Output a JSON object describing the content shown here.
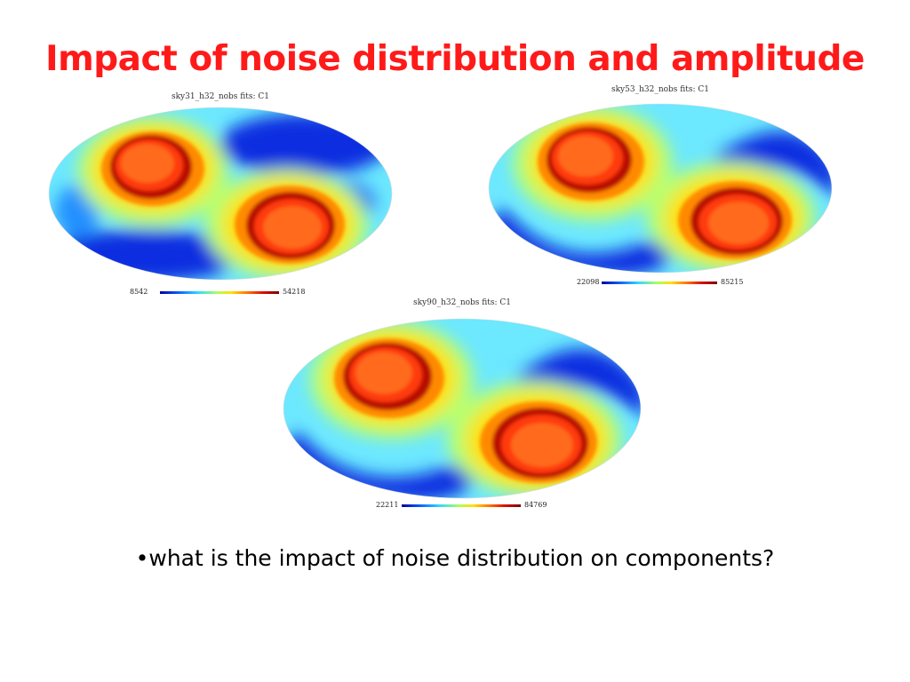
{
  "slide": {
    "title": "Impact of noise distribution and amplitude",
    "bullet": "•what is the impact of noise distribution on components?"
  },
  "maps": [
    {
      "caption": "sky31_h32_nobs fits: C1",
      "scale_min": "8542",
      "scale_max": "54218"
    },
    {
      "caption": "sky53_h32_nobs fits: C1",
      "scale_min": "22098",
      "scale_max": "85215"
    },
    {
      "caption": "sky90_h32_nobs fits: C1",
      "scale_min": "22211",
      "scale_max": "84769"
    }
  ],
  "colors": {
    "title": "#ff1a1a",
    "colormap": [
      "#00008f",
      "#0050ff",
      "#30d8ff",
      "#a8ff60",
      "#ffe000",
      "#ff7000",
      "#e01000",
      "#7a0000"
    ]
  }
}
